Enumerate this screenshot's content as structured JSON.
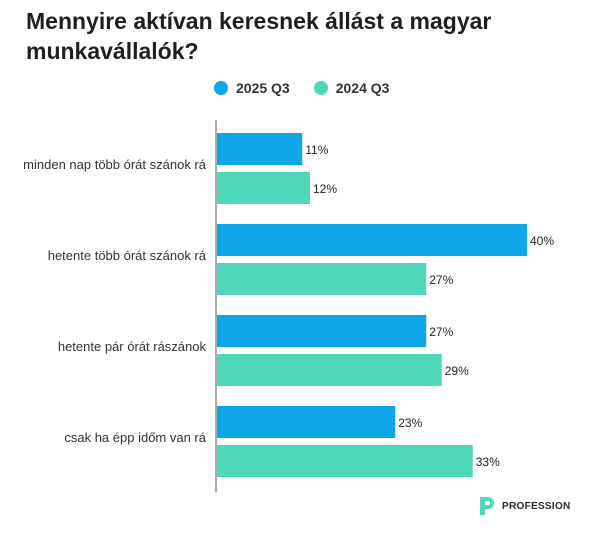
{
  "chart_data": {
    "type": "bar",
    "orientation": "horizontal",
    "title": "Mennyire aktívan keresnek állást a magyar munkavállalók?",
    "categories": [
      "minden nap több órát szánok rá",
      "hetente több órát szánok rá",
      "hetente pár órát rászánok",
      "csak ha épp időm van rá"
    ],
    "series": [
      {
        "name": "2025 Q3",
        "color": "#0ea5e9",
        "values": [
          11,
          40,
          27,
          23
        ]
      },
      {
        "name": "2024 Q3",
        "color": "#4fd6bb",
        "values": [
          12,
          27,
          29,
          33
        ]
      }
    ],
    "xlim": [
      0,
      40
    ],
    "value_suffix": "%",
    "legend": "top"
  },
  "branding": {
    "logo_text": "PROFESSION"
  }
}
